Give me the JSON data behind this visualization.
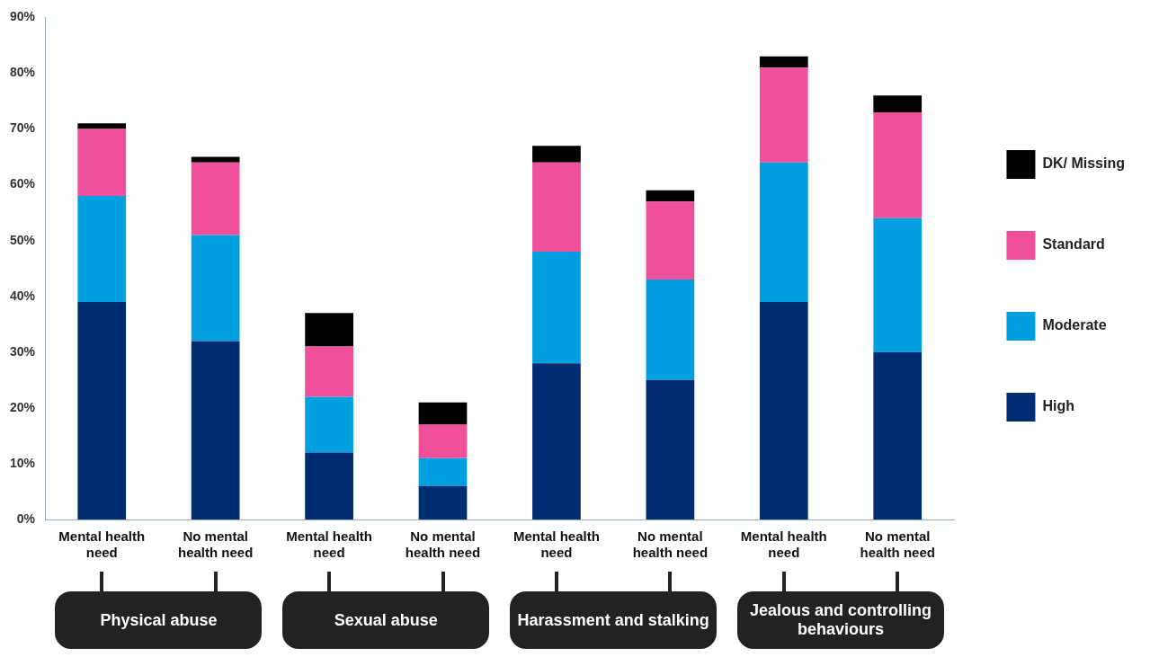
{
  "chart_data": {
    "type": "bar",
    "stacked": true,
    "grid": false,
    "legend": "right",
    "categories": [
      "Mental health need",
      "No mental health need",
      "Mental health need",
      "No mental health need",
      "Mental health need",
      "No mental health need",
      "Mental health need",
      "No mental health need"
    ],
    "series": [
      {
        "name": "High",
        "color": "#002d72",
        "values": [
          39,
          32,
          12,
          6,
          28,
          25,
          39,
          30
        ]
      },
      {
        "name": "Moderate",
        "color": "#00a0e0",
        "values": [
          19,
          19,
          10,
          5,
          20,
          18,
          25,
          24
        ]
      },
      {
        "name": "Standard",
        "color": "#f0509a",
        "values": [
          12,
          13,
          9,
          6,
          16,
          14,
          17,
          19
        ]
      },
      {
        "name": "DK/ Missing",
        "color": "#000000",
        "values": [
          1,
          1,
          6,
          4,
          3,
          2,
          2,
          3
        ]
      }
    ],
    "ylim": [
      0,
      90
    ],
    "yticks": [
      {
        "value": 0,
        "label": "0%"
      },
      {
        "value": 10,
        "label": "10%"
      },
      {
        "value": 20,
        "label": "20%"
      },
      {
        "value": 30,
        "label": "30%"
      },
      {
        "value": 40,
        "label": "40%"
      },
      {
        "value": 50,
        "label": "50%"
      },
      {
        "value": 60,
        "label": "60%"
      },
      {
        "value": 70,
        "label": "70%"
      },
      {
        "value": 80,
        "label": "80%"
      },
      {
        "value": 90,
        "label": "90%"
      }
    ],
    "annotations": [
      "Physical abuse",
      "Sexual abuse",
      "Harassment and stalking",
      "Jealous and controlling behaviours"
    ]
  }
}
